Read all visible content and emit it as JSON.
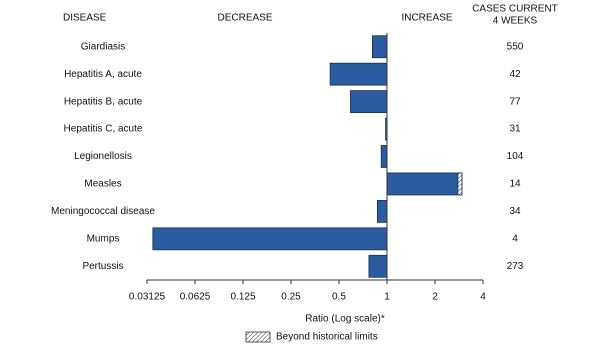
{
  "chart_data": {
    "type": "bar",
    "orientation": "horizontal",
    "headers": {
      "disease": "DISEASE",
      "decrease": "DECREASE",
      "increase": "INCREASE",
      "cases": [
        "CASES CURRENT",
        "4 WEEKS"
      ]
    },
    "categories": [
      "Giardiasis",
      "Hepatitis A, acute",
      "Hepatitis B, acute",
      "Hepatitis C, acute",
      "Legionellosis",
      "Measles",
      "Meningococcal disease",
      "Mumps",
      "Pertussis"
    ],
    "values": [
      0.81,
      0.44,
      0.59,
      0.98,
      0.92,
      2.95,
      0.87,
      0.034,
      0.77
    ],
    "cases_current_4_weeks": [
      550,
      42,
      77,
      31,
      104,
      14,
      34,
      4,
      273
    ],
    "beyond_historical_limits": [
      false,
      false,
      false,
      false,
      false,
      true,
      false,
      false,
      false
    ],
    "color": "#2b5c9f",
    "baseline": 1,
    "x_scale": "log",
    "xlim": [
      0.03125,
      4
    ],
    "xticks": [
      0.03125,
      0.0625,
      0.125,
      0.25,
      0.5,
      1,
      2,
      4
    ],
    "xlabel": "Ratio (Log scale)*",
    "legend": {
      "label": "Beyond historical limits"
    }
  }
}
